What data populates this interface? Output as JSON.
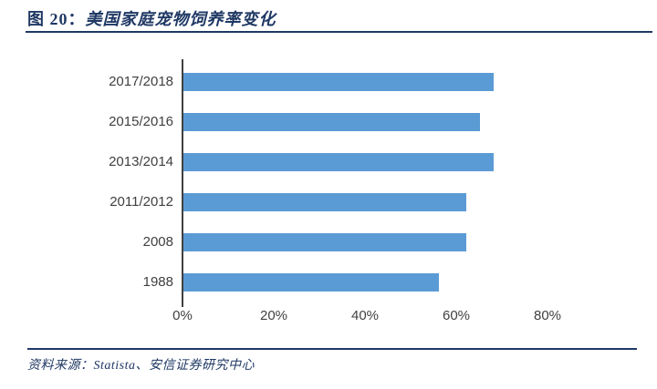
{
  "header": {
    "figure_label": "图 20：",
    "title": "美国家庭宠物饲养率变化",
    "rule_color": "#1F3864"
  },
  "chart_data": {
    "type": "bar",
    "orientation": "horizontal",
    "title": "美国家庭宠物饲养率变化",
    "categories": [
      "2017/2018",
      "2015/2016",
      "2013/2014",
      "2011/2012",
      "2008",
      "1988"
    ],
    "values": [
      68,
      65,
      68,
      62,
      62,
      56
    ],
    "unit": "%",
    "xlabel": "",
    "ylabel": "",
    "x_ticks": [
      "0%",
      "20%",
      "40%",
      "60%",
      "80%"
    ],
    "x_tick_values": [
      0,
      20,
      40,
      60,
      80
    ],
    "xlim": [
      0,
      90
    ],
    "grid": false,
    "legend": false,
    "bar_color": "#5B9BD5",
    "axis_color": "#404040"
  },
  "footer": {
    "source_text": "资料来源：Statista、安信证券研究中心"
  }
}
